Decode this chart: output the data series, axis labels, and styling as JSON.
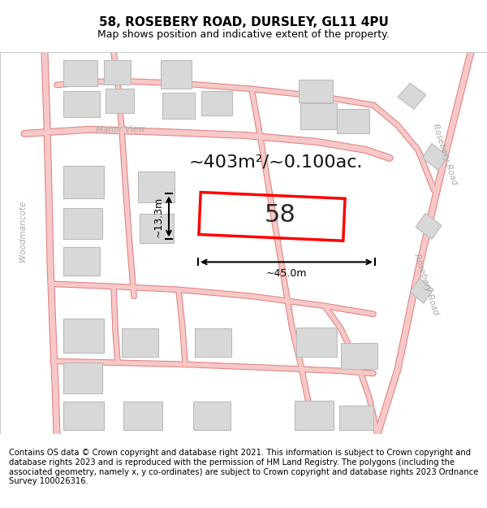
{
  "title": "58, ROSEBERY ROAD, DURSLEY, GL11 4PU",
  "subtitle": "Map shows position and indicative extent of the property.",
  "copyright": "Contains OS data © Crown copyright and database right 2021. This information is subject to Crown copyright and database rights 2023 and is reproduced with the permission of HM Land Registry. The polygons (including the associated geometry, namely x, y co-ordinates) are subject to Crown copyright and database rights 2023 Ordnance Survey 100026316.",
  "area_text": "~403m²/~0.100ac.",
  "width_label": "~45.0m",
  "height_label": "~13.3m",
  "plot_number": "58",
  "map_bg": "#ffffff",
  "road_fill": "#f7c8c8",
  "road_edge": "#e08080",
  "building_fill": "#d8d8d8",
  "building_edge": "#bbbbbb",
  "plot_color": "#ff0000",
  "label_color": "#aaaaaa",
  "title_fontsize": 11,
  "subtitle_fontsize": 9,
  "footer_fontsize": 7.2,
  "area_fontsize": 16,
  "dim_fontsize": 9,
  "plot_num_fontsize": 22,
  "street_fontsize": 7.5
}
